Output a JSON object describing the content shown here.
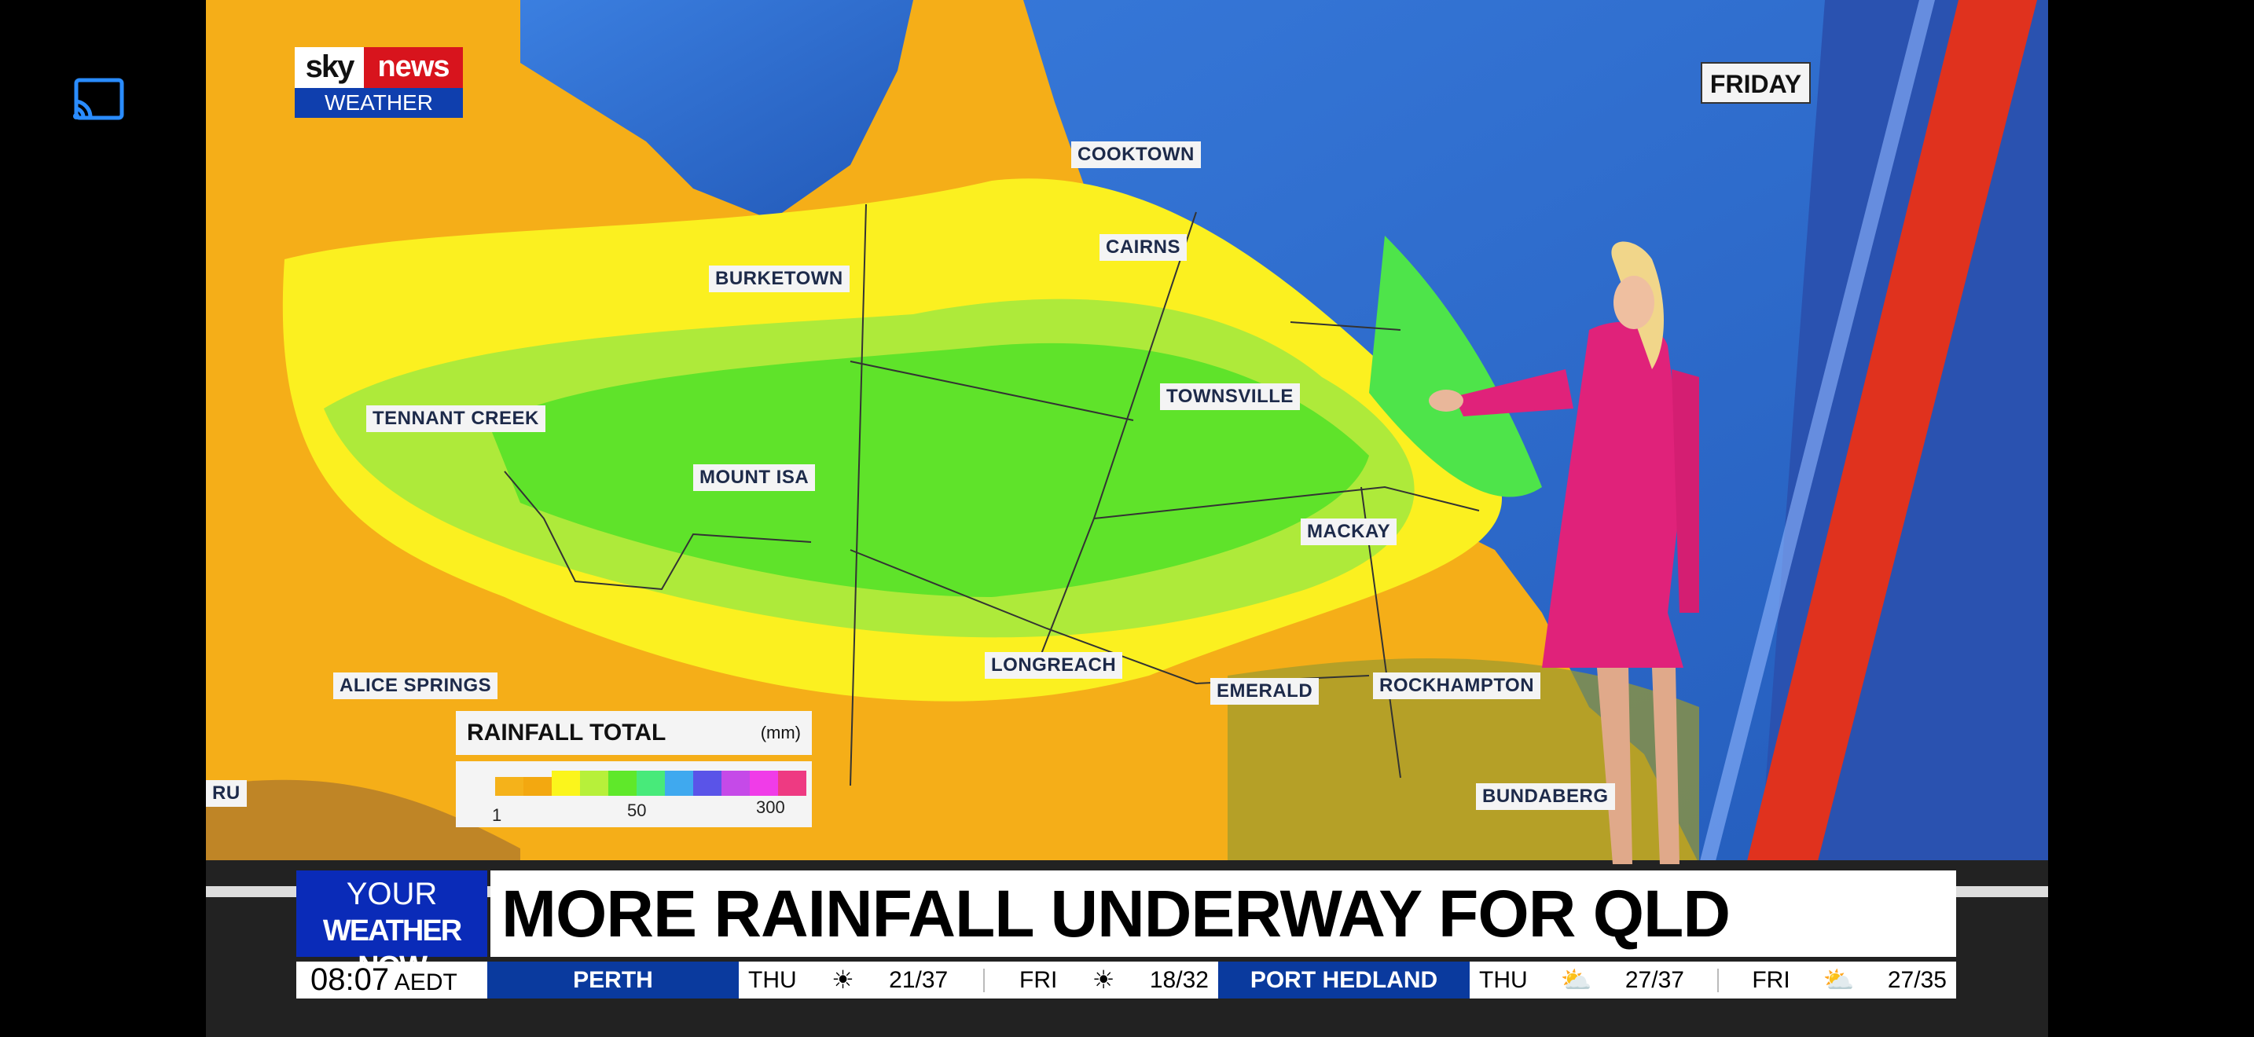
{
  "cast_icon": "cast-icon",
  "logo": {
    "sky": "sky",
    "news": "news",
    "sub": "WEATHER"
  },
  "day_label": "FRIDAY",
  "cities": [
    "COOKTOWN",
    "CAIRNS",
    "BURKETOWN",
    "TENNANT CREEK",
    "MOUNT ISA",
    "TOWNSVILLE",
    "MACKAY",
    "LONGREACH",
    "EMERALD",
    "ALICE SPRINGS",
    "ROCKHAMPTON",
    "BUNDABERG",
    "RU"
  ],
  "legend": {
    "title": "RAINFALL TOTAL",
    "unit": "(mm)",
    "ticks": [
      "1",
      "50",
      "300"
    ],
    "colors": [
      "#f5b21a",
      "#f3a810",
      "#fbf51c",
      "#b7f03a",
      "#5fe82a",
      "#48ea7a",
      "#3fa9ef",
      "#5a54e8",
      "#c54ae8",
      "#f03ce8",
      "#ee3a82"
    ]
  },
  "banner": {
    "your": "YOUR",
    "weather_now": "WEATHER NOW",
    "headline": "MORE RAINFALL UNDERWAY FOR QLD"
  },
  "ticker": {
    "time": "08:07",
    "tz": "AEDT",
    "locations": [
      {
        "name": "PERTH",
        "days": [
          {
            "day": "THU",
            "icon": "sun-icon",
            "temp": "21/37"
          },
          {
            "day": "FRI",
            "icon": "sun-icon",
            "temp": "18/32"
          }
        ]
      },
      {
        "name": "PORT HEDLAND",
        "days": [
          {
            "day": "THU",
            "icon": "sun-cloud-icon",
            "temp": "27/37"
          },
          {
            "day": "FRI",
            "icon": "sun-cloud-icon",
            "temp": "27/35"
          }
        ]
      }
    ]
  },
  "colors": {
    "ocean": "#2f6fd0",
    "land": "#f5b21a",
    "brand_blue": "#0a2bb8",
    "dress": "#e0227a"
  }
}
